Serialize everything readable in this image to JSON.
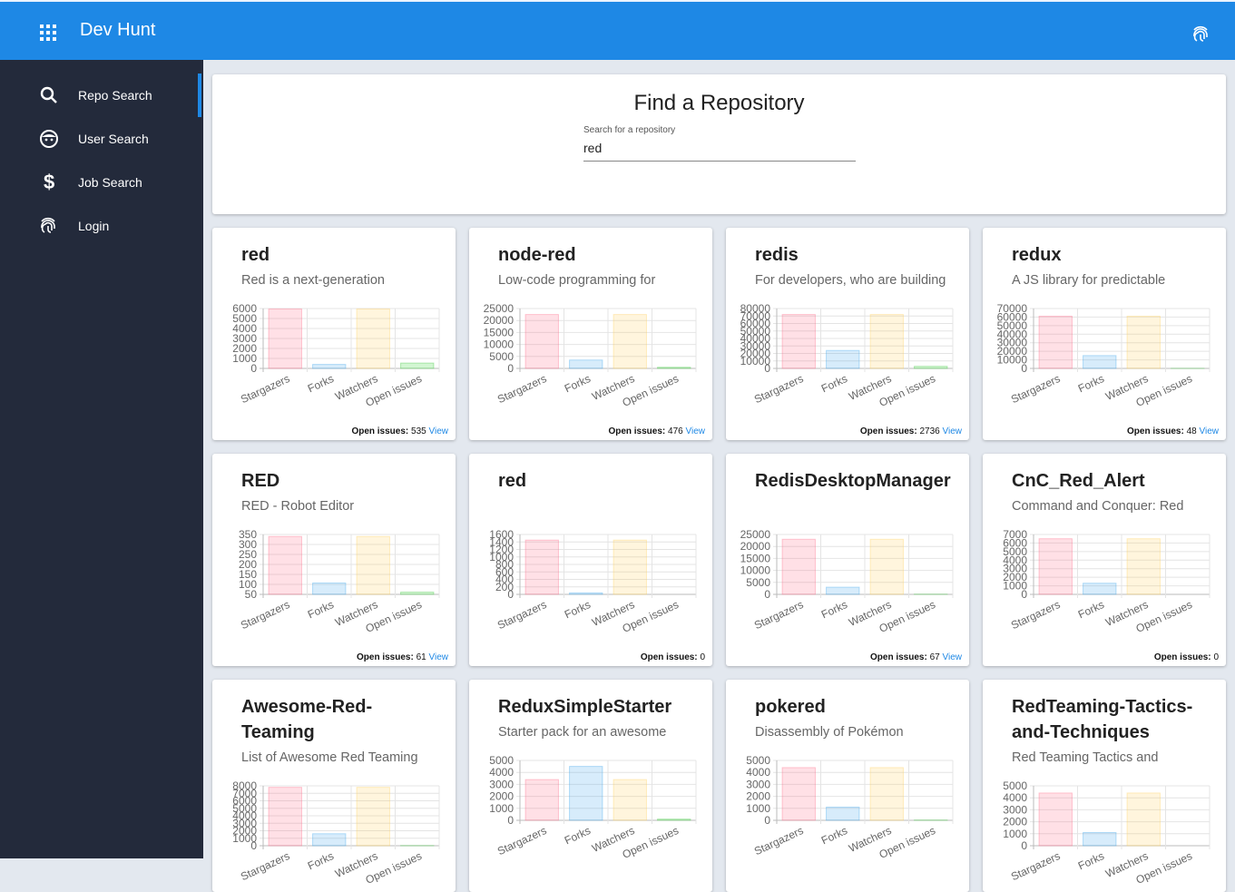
{
  "header": {
    "title": "Dev Hunt"
  },
  "nav": [
    {
      "label": "Repo Search",
      "active": true
    },
    {
      "label": "User Search"
    },
    {
      "label": "Job Search"
    },
    {
      "label": "Login"
    }
  ],
  "search": {
    "title": "Find a Repository",
    "label": "Search for a repository",
    "value": "red"
  },
  "chart_colors": [
    {
      "fill": "rgba(255,99,132,0.2)",
      "stroke": "rgba(255,99,132,0.35)"
    },
    {
      "fill": "rgba(54,162,235,0.2)",
      "stroke": "rgba(54,162,235,0.35)"
    },
    {
      "fill": "rgba(255,206,86,0.2)",
      "stroke": "rgba(255,206,86,0.35)"
    },
    {
      "fill": "rgba(75,220,75,0.25)",
      "stroke": "rgba(75,200,75,0.4)"
    }
  ],
  "cards": [
    {
      "title": "red",
      "description": "Red is a next-generation",
      "chart": {
        "type": "bar",
        "categories": [
          "Stargazers",
          "Forks",
          "Watchers",
          "Open issues"
        ],
        "values": [
          5950,
          400,
          5950,
          535
        ],
        "ylim": [
          0,
          6000
        ],
        "yticks": [
          0,
          1000,
          2000,
          3000,
          4000,
          5000,
          6000
        ]
      },
      "footer": {
        "label": "Open issues:",
        "count": 535,
        "link": "View"
      }
    },
    {
      "title": "node-red",
      "description": "Low-code programming for",
      "chart": {
        "type": "bar",
        "categories": [
          "Stargazers",
          "Forks",
          "Watchers",
          "Open issues"
        ],
        "values": [
          22500,
          3500,
          22500,
          476
        ],
        "ylim": [
          0,
          25000
        ],
        "yticks": [
          0,
          5000,
          10000,
          15000,
          20000,
          25000
        ]
      },
      "footer": {
        "label": "Open issues:",
        "count": 476,
        "link": "View"
      }
    },
    {
      "title": "redis",
      "description": "For developers, who are building",
      "chart": {
        "type": "bar",
        "categories": [
          "Stargazers",
          "Forks",
          "Watchers",
          "Open issues"
        ],
        "values": [
          72000,
          24000,
          72000,
          2736
        ],
        "ylim": [
          0,
          80000
        ],
        "yticks": [
          0,
          10000,
          20000,
          30000,
          40000,
          50000,
          60000,
          70000,
          80000
        ]
      },
      "footer": {
        "label": "Open issues:",
        "count": 2736,
        "link": "View"
      }
    },
    {
      "title": "redux",
      "description": "A JS library for predictable",
      "chart": {
        "type": "bar",
        "categories": [
          "Stargazers",
          "Forks",
          "Watchers",
          "Open issues"
        ],
        "values": [
          61000,
          15000,
          61000,
          48
        ],
        "ylim": [
          0,
          70000
        ],
        "yticks": [
          0,
          10000,
          20000,
          30000,
          40000,
          50000,
          60000,
          70000
        ]
      },
      "footer": {
        "label": "Open issues:",
        "count": 48,
        "link": "View"
      }
    },
    {
      "title": "RED",
      "description": "RED - Robot Editor",
      "chart": {
        "type": "bar",
        "categories": [
          "Stargazers",
          "Forks",
          "Watchers",
          "Open issues"
        ],
        "values": [
          340,
          107,
          340,
          61
        ],
        "ylim": [
          50,
          350
        ],
        "yticks": [
          50,
          100,
          150,
          200,
          250,
          300,
          350
        ]
      },
      "footer": {
        "label": "Open issues:",
        "count": 61,
        "link": "View"
      }
    },
    {
      "title": "red",
      "chart": {
        "type": "bar",
        "categories": [
          "Stargazers",
          "Forks",
          "Watchers",
          "Open issues"
        ],
        "values": [
          1450,
          40,
          1450,
          0
        ],
        "ylim": [
          0,
          1600
        ],
        "yticks": [
          0,
          200,
          400,
          600,
          800,
          1000,
          1200,
          1400,
          1600
        ]
      },
      "footer": {
        "label": "Open issues:",
        "count": 0
      }
    },
    {
      "title": "RedisDesktopManager",
      "chart": {
        "type": "bar",
        "categories": [
          "Stargazers",
          "Forks",
          "Watchers",
          "Open issues"
        ],
        "values": [
          23000,
          3000,
          23000,
          67
        ],
        "ylim": [
          0,
          25000
        ],
        "yticks": [
          0,
          5000,
          10000,
          15000,
          20000,
          25000
        ]
      },
      "footer": {
        "label": "Open issues:",
        "count": 67,
        "link": "View"
      }
    },
    {
      "title": "CnC_Red_Alert",
      "description": "Command and Conquer: Red",
      "chart": {
        "type": "bar",
        "categories": [
          "Stargazers",
          "Forks",
          "Watchers",
          "Open issues"
        ],
        "values": [
          6500,
          1300,
          6500,
          0
        ],
        "ylim": [
          0,
          7000
        ],
        "yticks": [
          0,
          1000,
          2000,
          3000,
          4000,
          5000,
          6000,
          7000
        ]
      },
      "footer": {
        "label": "Open issues:",
        "count": 0
      }
    },
    {
      "title": "Awesome-Red-Teaming",
      "description": "List of Awesome Red Teaming",
      "chart": {
        "type": "bar",
        "categories": [
          "Stargazers",
          "Forks",
          "Watchers",
          "Open issues"
        ],
        "values": [
          7800,
          1600,
          7800,
          20
        ],
        "ylim": [
          0,
          8000
        ],
        "yticks": [
          0,
          1000,
          2000,
          3000,
          4000,
          5000,
          6000,
          7000,
          8000
        ]
      }
    },
    {
      "title": "ReduxSimpleStarter",
      "description": "Starter pack for an awesome",
      "chart": {
        "type": "bar",
        "categories": [
          "Stargazers",
          "Forks",
          "Watchers",
          "Open issues"
        ],
        "values": [
          3400,
          4500,
          3400,
          100
        ],
        "ylim": [
          0,
          5000
        ],
        "yticks": [
          0,
          1000,
          2000,
          3000,
          4000,
          5000
        ]
      }
    },
    {
      "title": "pokered",
      "description": "Disassembly of Pokémon",
      "chart": {
        "type": "bar",
        "categories": [
          "Stargazers",
          "Forks",
          "Watchers",
          "Open issues"
        ],
        "values": [
          4400,
          1100,
          4400,
          20
        ],
        "ylim": [
          0,
          5000
        ],
        "yticks": [
          0,
          1000,
          2000,
          3000,
          4000,
          5000
        ]
      }
    },
    {
      "title": "RedTeaming-Tactics-and-Techniques",
      "description": "Red Teaming Tactics and",
      "chart": {
        "type": "bar",
        "categories": [
          "Stargazers",
          "Forks",
          "Watchers",
          "Open issues"
        ],
        "values": [
          4400,
          1100,
          4400,
          0
        ],
        "ylim": [
          0,
          5000
        ],
        "yticks": [
          0,
          1000,
          2000,
          3000,
          4000,
          5000
        ]
      }
    }
  ]
}
